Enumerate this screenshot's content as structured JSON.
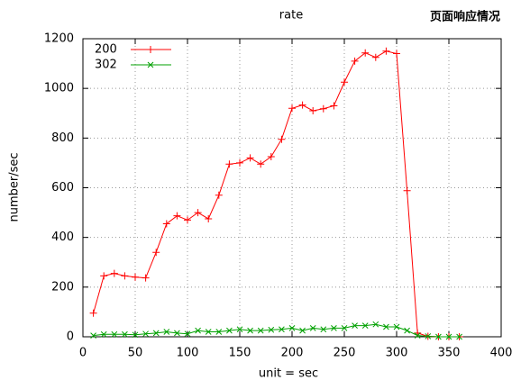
{
  "chart_data": {
    "type": "line",
    "title": "rate",
    "annotation": "页面响应情况",
    "x_label": "unit = sec",
    "y_label": "number/sec",
    "x": [
      10,
      20,
      30,
      40,
      50,
      60,
      70,
      80,
      90,
      100,
      110,
      120,
      130,
      140,
      150,
      160,
      170,
      180,
      190,
      200,
      210,
      220,
      230,
      240,
      250,
      260,
      270,
      280,
      290,
      300,
      310,
      320,
      330,
      340,
      350,
      360
    ],
    "series": [
      {
        "name": "200",
        "color": "#ff0000",
        "marker": "plus",
        "values": [
          95,
          245,
          255,
          245,
          240,
          237,
          340,
          455,
          487,
          470,
          500,
          475,
          570,
          695,
          700,
          720,
          695,
          725,
          795,
          920,
          933,
          910,
          918,
          930,
          1025,
          1110,
          1143,
          1125,
          1150,
          1140,
          588,
          15,
          2,
          0,
          0,
          0
        ]
      },
      {
        "name": "302",
        "color": "#00a000",
        "marker": "cross",
        "values": [
          5,
          10,
          10,
          10,
          8,
          12,
          15,
          20,
          15,
          12,
          25,
          20,
          20,
          25,
          30,
          25,
          25,
          28,
          30,
          35,
          25,
          35,
          30,
          35,
          35,
          45,
          45,
          50,
          40,
          40,
          25,
          5,
          2,
          0,
          0,
          0
        ]
      }
    ],
    "xlim": [
      0,
      400
    ],
    "xticks": [
      0,
      50,
      100,
      150,
      200,
      250,
      300,
      350,
      400
    ],
    "ylim": [
      0,
      1200
    ],
    "yticks": [
      0,
      200,
      400,
      600,
      800,
      1000,
      1200
    ],
    "grid": true,
    "legend": "top-left"
  }
}
